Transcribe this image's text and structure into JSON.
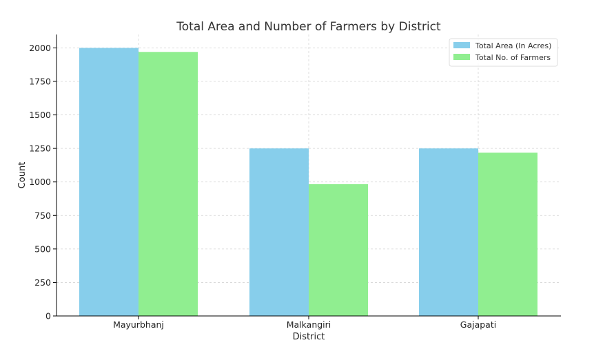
{
  "chart_data": {
    "type": "bar",
    "title": "Total Area and Number of Farmers by District",
    "xlabel": "District",
    "ylabel": "Count",
    "categories": [
      "Mayurbhanj",
      "Malkangiri",
      "Gajapati"
    ],
    "series": [
      {
        "name": "Total Area (In Acres)",
        "values": [
          2000,
          1250,
          1250
        ],
        "color": "#87ceeb"
      },
      {
        "name": "Total No. of Farmers",
        "values": [
          1970,
          983,
          1218
        ],
        "color": "#90ee90"
      }
    ],
    "ylim": [
      0,
      2100
    ],
    "yticks": [
      0,
      250,
      500,
      750,
      1000,
      1250,
      1500,
      1750,
      2000
    ],
    "grid": true,
    "legend_position": "top-right"
  }
}
